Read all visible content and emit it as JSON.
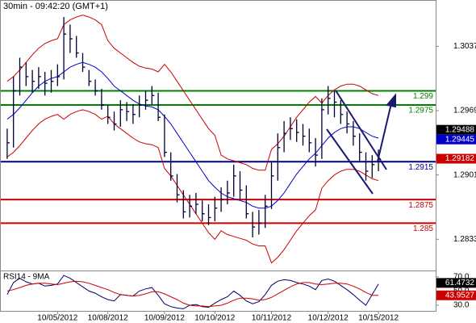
{
  "chart_data": [
    {
      "type": "ohlc",
      "title": "30min - 09:42:20 (GMT+1)",
      "color": "#000033",
      "categories": [
        null,
        null,
        null,
        null,
        null,
        null,
        null,
        null,
        "10/05/2012",
        null,
        null,
        null,
        null,
        null,
        null,
        null,
        "10/08/2012",
        null,
        null,
        null,
        null,
        null,
        null,
        null,
        null,
        "10/09/2012",
        null,
        null,
        null,
        null,
        null,
        null,
        null,
        "10/10/2012",
        null,
        null,
        null,
        null,
        null,
        null,
        null,
        null,
        "10/11/2012",
        null,
        null,
        null,
        null,
        null,
        null,
        null,
        null,
        "10/12/2012",
        null,
        null,
        null,
        null,
        null,
        null,
        null,
        "10/15/2012"
      ],
      "high": [
        1.295,
        1.3005,
        1.3025,
        1.302,
        1.3012,
        1.3015,
        1.301,
        1.3012,
        1.3018,
        1.3068,
        1.306,
        1.3048,
        1.303,
        1.3012,
        1.3002,
        1.2992,
        1.2975,
        1.2968,
        1.298,
        1.2978,
        1.2976,
        1.2985,
        1.299,
        1.2995,
        1.2988,
        1.2965,
        1.2925,
        1.2902,
        1.2885,
        1.288,
        1.2882,
        1.2874,
        1.287,
        1.2878,
        1.2888,
        1.2895,
        1.2912,
        1.2905,
        1.289,
        1.2862,
        1.2864,
        1.288,
        1.2915,
        1.2945,
        1.2958,
        1.2962,
        1.296,
        1.2955,
        1.295,
        1.294,
        1.2982,
        1.2995,
        1.299,
        1.298,
        1.2968,
        1.2958,
        1.2945,
        1.2925,
        1.2922,
        1.2928
      ],
      "low": [
        1.2918,
        1.293,
        1.2985,
        1.2995,
        1.2988,
        1.2992,
        1.2985,
        1.2988,
        1.2995,
        1.3002,
        1.303,
        1.3025,
        1.301,
        1.2995,
        1.2985,
        1.297,
        1.2955,
        1.2948,
        1.2952,
        1.2958,
        1.2955,
        1.2962,
        1.297,
        1.2975,
        1.2958,
        1.292,
        1.2895,
        1.2872,
        1.2855,
        1.2856,
        1.286,
        1.2852,
        1.2848,
        1.2852,
        1.2862,
        1.287,
        1.2878,
        1.2875,
        1.2855,
        1.2835,
        1.2838,
        1.2845,
        1.2865,
        1.2895,
        1.2925,
        1.2938,
        1.2936,
        1.2932,
        1.2925,
        1.291,
        1.2918,
        1.2965,
        1.2962,
        1.2955,
        1.2945,
        1.2932,
        1.2915,
        1.2895,
        1.2898,
        1.2905
      ],
      "close": [
        1.2935,
        1.299,
        1.3015,
        1.3005,
        1.3,
        1.3005,
        1.2998,
        1.3,
        1.3005,
        1.305,
        1.3045,
        1.303,
        1.3015,
        1.3,
        1.299,
        1.2975,
        1.2962,
        1.2955,
        1.297,
        1.2968,
        1.2965,
        1.2975,
        1.298,
        1.2985,
        1.2962,
        1.2925,
        1.29,
        1.288,
        1.2862,
        1.2868,
        1.287,
        1.286,
        1.2856,
        1.2866,
        1.2875,
        1.2882,
        1.29,
        1.2885,
        1.286,
        1.2846,
        1.285,
        1.2868,
        1.29,
        1.293,
        1.2945,
        1.295,
        1.2946,
        1.2942,
        1.2935,
        1.2922,
        1.297,
        1.2982,
        1.2978,
        1.2965,
        1.2955,
        1.2942,
        1.2925,
        1.2905,
        1.2912,
        1.2918
      ],
      "series": [
        {
          "color": "#cc0000",
          "values": [
            1.3,
            1.3005,
            1.3012,
            1.302,
            1.3028,
            1.3035,
            1.304,
            1.3043,
            1.3045,
            1.306,
            1.3065,
            1.3068,
            1.307,
            1.3068,
            1.3065,
            1.306,
            1.3043,
            1.3035,
            1.303,
            1.3025,
            1.302,
            1.3016,
            1.3014,
            1.3013,
            1.301,
            1.3018,
            1.301,
            1.3,
            1.299,
            1.298,
            1.297,
            1.296,
            1.295,
            1.2943,
            1.2922,
            1.2918,
            1.2916,
            1.2914,
            1.2912,
            1.2908,
            1.2906,
            1.2906,
            1.2928,
            1.2934,
            1.2942,
            1.2952,
            1.2962,
            1.297,
            1.2978,
            1.2984,
            1.2977,
            1.2985,
            1.2991,
            1.2995,
            1.2997,
            1.2997,
            1.2995,
            1.2991,
            1.2987,
            1.2985
          ]
        },
        {
          "color": "#0000cc",
          "values": [
            1.296,
            1.2965,
            1.2972,
            1.298,
            1.2988,
            1.2995,
            1.3,
            1.3003,
            1.3005,
            1.301,
            1.3015,
            1.3018,
            1.302,
            1.3018,
            1.3015,
            1.301,
            1.3003,
            1.2995,
            1.299,
            1.2985,
            1.298,
            1.2976,
            1.2974,
            1.2973,
            1.297,
            1.2963,
            1.2955,
            1.2945,
            1.2935,
            1.2925,
            1.2915,
            1.2905,
            1.2895,
            1.2888,
            1.2882,
            1.2878,
            1.2876,
            1.2874,
            1.2872,
            1.2868,
            1.2866,
            1.2866,
            1.2868,
            1.2874,
            1.2882,
            1.2892,
            1.2902,
            1.291,
            1.2918,
            1.2924,
            1.2932,
            1.294,
            1.2946,
            1.295,
            1.2952,
            1.2952,
            1.295,
            1.2946,
            1.2942,
            1.294
          ]
        },
        {
          "color": "#cc0000",
          "values": [
            1.292,
            1.2925,
            1.2932,
            1.294,
            1.2948,
            1.2955,
            1.296,
            1.2963,
            1.2965,
            1.296,
            1.2965,
            1.2968,
            1.297,
            1.2968,
            1.2965,
            1.296,
            1.2963,
            1.2955,
            1.295,
            1.2945,
            1.294,
            1.2936,
            1.2934,
            1.2933,
            1.293,
            1.2908,
            1.29,
            1.289,
            1.288,
            1.287,
            1.286,
            1.285,
            1.284,
            1.2833,
            1.2842,
            1.2838,
            1.2836,
            1.2834,
            1.2832,
            1.2828,
            1.2826,
            1.2826,
            1.2808,
            1.2814,
            1.2822,
            1.2832,
            1.2842,
            1.285,
            1.2858,
            1.2864,
            1.2887,
            1.2895,
            1.2901,
            1.2905,
            1.2907,
            1.2907,
            1.2905,
            1.2901,
            1.2897,
            1.2895
          ]
        }
      ],
      "levels": [
        {
          "value": 1.299,
          "color": "#008000"
        },
        {
          "value": 1.2975,
          "color": "#008000"
        },
        {
          "value": 1.2915,
          "color": "#00008b"
        },
        {
          "value": 1.2875,
          "color": "#cc0000"
        },
        {
          "value": 1.285,
          "color": "#cc0000"
        }
      ],
      "markers": [
        {
          "value": 1.29488,
          "color": "#000000"
        },
        {
          "value": 1.29445,
          "color": "#0000cc"
        },
        {
          "value": 1.29182,
          "color": "#cc0000"
        }
      ],
      "ylim": [
        1.28,
        1.3086
      ],
      "yticks": [
        1.3037,
        1.2969,
        1.2901,
        1.2833
      ]
    },
    {
      "type": "line",
      "title": "RSI14 - 9MA",
      "series": [
        {
          "color": "#000066",
          "values": [
            45,
            62,
            68,
            63,
            60,
            61,
            57,
            58,
            60,
            72,
            68,
            62,
            56,
            50,
            47,
            42,
            38,
            36,
            45,
            44,
            43,
            50,
            53,
            55,
            44,
            32,
            28,
            26,
            25,
            30,
            31,
            28,
            27,
            33,
            38,
            42,
            50,
            44,
            36,
            32,
            35,
            45,
            58,
            64,
            66,
            65,
            62,
            60,
            57,
            52,
            65,
            67,
            64,
            58,
            52,
            45,
            37,
            30,
            45,
            60
          ]
        },
        {
          "color": "#cc0000",
          "values": [
            50,
            52,
            55,
            58,
            60,
            61,
            61,
            60,
            59,
            61,
            63,
            64,
            63,
            61,
            58,
            55,
            52,
            48,
            45,
            44,
            43,
            44,
            46,
            49,
            49,
            46,
            42,
            38,
            33,
            30,
            29,
            29,
            28,
            29,
            30,
            33,
            37,
            40,
            40,
            39,
            37,
            38,
            41,
            46,
            51,
            56,
            60,
            62,
            62,
            60,
            59,
            60,
            61,
            61,
            60,
            57,
            53,
            48,
            44,
            44
          ]
        }
      ],
      "markers": [
        {
          "value": 61.4732,
          "color": "#000000"
        },
        {
          "value": 43.9527,
          "color": "#cc0000"
        }
      ],
      "ylim": [
        22,
        79
      ],
      "yticks": [
        {
          "value": 70,
          "label": "70.0"
        },
        {
          "value": 50,
          "label": "50.0"
        },
        {
          "value": 30,
          "label": "30.0"
        }
      ]
    }
  ]
}
